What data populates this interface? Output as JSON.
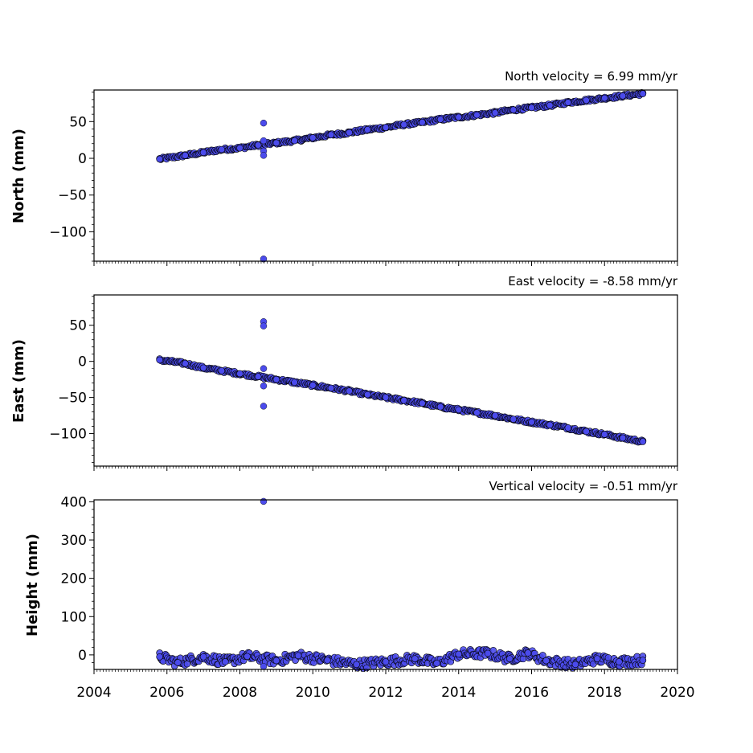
{
  "chart_data": [
    {
      "type": "scatter",
      "title": "North velocity = 6.99 mm/yr",
      "xlabel": "",
      "ylabel": "North (mm)",
      "xlim": [
        2004,
        2020
      ],
      "ylim": [
        -140,
        93
      ],
      "yticks": [
        50,
        0,
        -50,
        -100
      ],
      "ytick_labels": [
        "50",
        "0",
        "−50",
        "−100"
      ],
      "marker_color": "#4b4bec",
      "edge_color": "#000000",
      "trend": {
        "start": [
          2005.8,
          -1
        ],
        "end": [
          2019.05,
          88
        ],
        "noise": 2
      },
      "points": [
        {
          "x": 2005.8,
          "y": -1
        },
        {
          "x": 2006.5,
          "y": 4
        },
        {
          "x": 2007.0,
          "y": 8
        },
        {
          "x": 2007.5,
          "y": 12
        },
        {
          "x": 2008.0,
          "y": 14
        },
        {
          "x": 2008.5,
          "y": 18
        },
        {
          "x": 2009.0,
          "y": 21
        },
        {
          "x": 2009.5,
          "y": 24
        },
        {
          "x": 2010.0,
          "y": 28
        },
        {
          "x": 2010.5,
          "y": 32
        },
        {
          "x": 2011.0,
          "y": 35
        },
        {
          "x": 2011.5,
          "y": 39
        },
        {
          "x": 2012.0,
          "y": 42
        },
        {
          "x": 2012.5,
          "y": 46
        },
        {
          "x": 2013.0,
          "y": 49
        },
        {
          "x": 2013.5,
          "y": 53
        },
        {
          "x": 2014.0,
          "y": 56
        },
        {
          "x": 2014.5,
          "y": 59
        },
        {
          "x": 2015.0,
          "y": 62
        },
        {
          "x": 2015.5,
          "y": 66
        },
        {
          "x": 2016.0,
          "y": 69
        },
        {
          "x": 2016.5,
          "y": 72
        },
        {
          "x": 2017.0,
          "y": 76
        },
        {
          "x": 2017.5,
          "y": 79
        },
        {
          "x": 2018.0,
          "y": 82
        },
        {
          "x": 2018.5,
          "y": 85
        },
        {
          "x": 2019.05,
          "y": 88
        }
      ],
      "outliers": [
        {
          "x": 2008.65,
          "y": 48
        },
        {
          "x": 2008.65,
          "y": 24
        },
        {
          "x": 2008.65,
          "y": 10
        },
        {
          "x": 2008.65,
          "y": 4
        },
        {
          "x": 2008.65,
          "y": -137
        }
      ]
    },
    {
      "type": "scatter",
      "title": "East velocity = -8.58 mm/yr",
      "xlabel": "",
      "ylabel": "East (mm)",
      "xlim": [
        2004,
        2020
      ],
      "ylim": [
        -145,
        92
      ],
      "yticks": [
        50,
        0,
        -50,
        -100
      ],
      "ytick_labels": [
        "50",
        "0",
        "−50",
        "−100"
      ],
      "marker_color": "#4b4bec",
      "edge_color": "#000000",
      "trend": {
        "start": [
          2005.8,
          2
        ],
        "end": [
          2019.05,
          -112
        ],
        "noise": 2
      },
      "points": [
        {
          "x": 2005.8,
          "y": 2
        },
        {
          "x": 2006.5,
          "y": -3
        },
        {
          "x": 2007.0,
          "y": -9
        },
        {
          "x": 2007.5,
          "y": -13
        },
        {
          "x": 2008.0,
          "y": -17
        },
        {
          "x": 2008.5,
          "y": -21
        },
        {
          "x": 2009.0,
          "y": -25
        },
        {
          "x": 2009.5,
          "y": -29
        },
        {
          "x": 2010.0,
          "y": -33
        },
        {
          "x": 2010.5,
          "y": -37
        },
        {
          "x": 2011.0,
          "y": -41
        },
        {
          "x": 2011.5,
          "y": -46
        },
        {
          "x": 2012.0,
          "y": -50
        },
        {
          "x": 2012.5,
          "y": -54
        },
        {
          "x": 2013.0,
          "y": -58
        },
        {
          "x": 2013.5,
          "y": -63
        },
        {
          "x": 2014.0,
          "y": -67
        },
        {
          "x": 2014.5,
          "y": -71
        },
        {
          "x": 2015.0,
          "y": -75
        },
        {
          "x": 2015.5,
          "y": -80
        },
        {
          "x": 2016.0,
          "y": -84
        },
        {
          "x": 2016.5,
          "y": -88
        },
        {
          "x": 2017.0,
          "y": -92
        },
        {
          "x": 2017.5,
          "y": -97
        },
        {
          "x": 2018.0,
          "y": -101
        },
        {
          "x": 2018.5,
          "y": -106
        },
        {
          "x": 2019.05,
          "y": -111
        }
      ],
      "outliers": [
        {
          "x": 2008.65,
          "y": 55
        },
        {
          "x": 2008.65,
          "y": 49
        },
        {
          "x": 2008.65,
          "y": -10
        },
        {
          "x": 2008.65,
          "y": -34
        },
        {
          "x": 2008.65,
          "y": -62
        }
      ]
    },
    {
      "type": "scatter",
      "title": "Vertical velocity = -0.51 mm/yr",
      "xlabel": "",
      "ylabel": "Height (mm)",
      "xlim": [
        2004,
        2020
      ],
      "xticks": [
        2004,
        2006,
        2008,
        2010,
        2012,
        2014,
        2016,
        2018,
        2020
      ],
      "xtick_labels": [
        "2004",
        "2006",
        "2008",
        "2010",
        "2012",
        "2014",
        "2016",
        "2018",
        "2020"
      ],
      "ylim": [
        -38,
        405
      ],
      "yticks": [
        400,
        300,
        200,
        100,
        0
      ],
      "ytick_labels": [
        "400",
        "300",
        "200",
        "100",
        "0"
      ],
      "marker_color": "#4b4bec",
      "edge_color": "#000000",
      "trend": {
        "start": [
          2005.8,
          -8
        ],
        "end": [
          2019.05,
          -14
        ],
        "noise": 12
      },
      "points": [
        {
          "x": 2005.8,
          "y": -5
        },
        {
          "x": 2006.3,
          "y": -20
        },
        {
          "x": 2007.0,
          "y": -5
        },
        {
          "x": 2007.6,
          "y": -18
        },
        {
          "x": 2008.2,
          "y": -4
        },
        {
          "x": 2009.0,
          "y": -15
        },
        {
          "x": 2009.6,
          "y": -2
        },
        {
          "x": 2010.4,
          "y": -14
        },
        {
          "x": 2011.2,
          "y": -25
        },
        {
          "x": 2012.0,
          "y": -18
        },
        {
          "x": 2012.8,
          "y": -10
        },
        {
          "x": 2013.4,
          "y": -22
        },
        {
          "x": 2014.0,
          "y": 2
        },
        {
          "x": 2014.8,
          "y": 4
        },
        {
          "x": 2015.4,
          "y": -10
        },
        {
          "x": 2015.9,
          "y": 5
        },
        {
          "x": 2016.4,
          "y": -15
        },
        {
          "x": 2017.2,
          "y": -25
        },
        {
          "x": 2017.8,
          "y": -10
        },
        {
          "x": 2018.4,
          "y": -18
        },
        {
          "x": 2019.05,
          "y": -14
        }
      ],
      "outliers": [
        {
          "x": 2008.65,
          "y": 401
        },
        {
          "x": 2008.65,
          "y": -30
        }
      ]
    }
  ]
}
